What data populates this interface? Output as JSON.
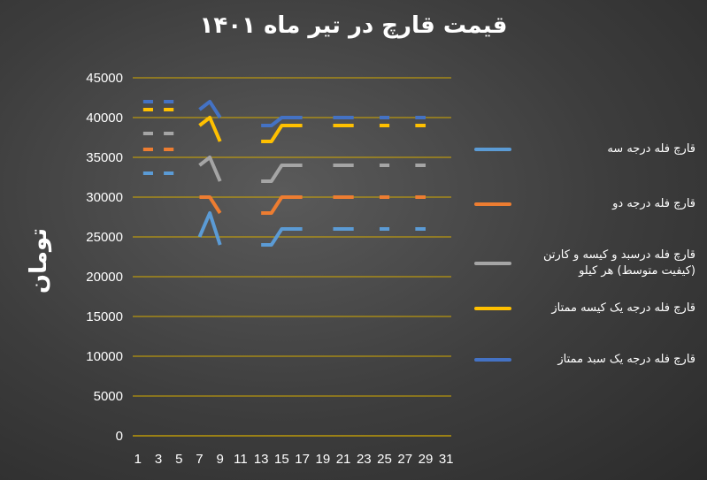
{
  "chart_data": {
    "type": "line",
    "title": "قیمت قارچ در تیر ماه ۱۴۰۱",
    "xlabel": "",
    "ylabel": "تومان",
    "ylim": [
      0,
      45000
    ],
    "y_ticks": [
      "0",
      "5000",
      "10000",
      "15000",
      "20000",
      "25000",
      "30000",
      "35000",
      "40000",
      "45000"
    ],
    "x_ticks": [
      "1",
      "3",
      "5",
      "7",
      "9",
      "11",
      "13",
      "15",
      "17",
      "19",
      "21",
      "23",
      "25",
      "27",
      "29",
      "31"
    ],
    "x": [
      1,
      2,
      3,
      4,
      5,
      6,
      7,
      8,
      9,
      10,
      11,
      12,
      13,
      14,
      15,
      16,
      17,
      18,
      19,
      20,
      21,
      22,
      23,
      24,
      25,
      26,
      27,
      28,
      29,
      30,
      31
    ],
    "grid": "horizontal",
    "legend_position": "right",
    "series": [
      {
        "name": "قارچ فله درجه سه",
        "color": "#5b9bd5",
        "values": [
          null,
          33000,
          null,
          33000,
          null,
          null,
          25000,
          28000,
          24000,
          null,
          null,
          null,
          24000,
          24000,
          26000,
          26000,
          26000,
          null,
          null,
          26000,
          26000,
          26000,
          null,
          null,
          26000,
          null,
          null,
          26000,
          26000,
          null,
          null
        ]
      },
      {
        "name": "قارچ فله درجه دو",
        "color": "#ed7d31",
        "values": [
          null,
          36000,
          null,
          36000,
          null,
          null,
          30000,
          30000,
          28000,
          null,
          null,
          null,
          28000,
          28000,
          30000,
          30000,
          30000,
          null,
          null,
          30000,
          30000,
          30000,
          null,
          null,
          30000,
          null,
          null,
          30000,
          30000,
          null,
          null
        ]
      },
      {
        "name": "قارچ فله درسبد و کیسه و کارتن (کیفیت متوسط) هر کیلو",
        "color": "#a5a5a5",
        "values": [
          null,
          38000,
          null,
          38000,
          null,
          null,
          34000,
          35000,
          32000,
          null,
          null,
          null,
          32000,
          32000,
          34000,
          34000,
          34000,
          null,
          null,
          34000,
          34000,
          34000,
          null,
          null,
          34000,
          null,
          null,
          34000,
          34000,
          null,
          null
        ]
      },
      {
        "name": "قارچ فله درجه یک کیسه ممتاز",
        "color": "#ffc000",
        "values": [
          null,
          41000,
          null,
          41000,
          null,
          null,
          39000,
          40000,
          37000,
          null,
          null,
          null,
          37000,
          37000,
          39000,
          39000,
          39000,
          null,
          null,
          39000,
          39000,
          39000,
          null,
          null,
          39000,
          null,
          null,
          39000,
          39000,
          null,
          null
        ]
      },
      {
        "name": "قارچ فله درجه یک سبد ممتاز",
        "color": "#4472c4",
        "values": [
          null,
          42000,
          null,
          42000,
          null,
          null,
          41000,
          42000,
          40000,
          null,
          null,
          null,
          39000,
          39000,
          40000,
          40000,
          40000,
          null,
          null,
          40000,
          40000,
          40000,
          null,
          null,
          40000,
          null,
          null,
          40000,
          40000,
          null,
          null
        ]
      }
    ],
    "gridline_color": "#d4aa00"
  }
}
